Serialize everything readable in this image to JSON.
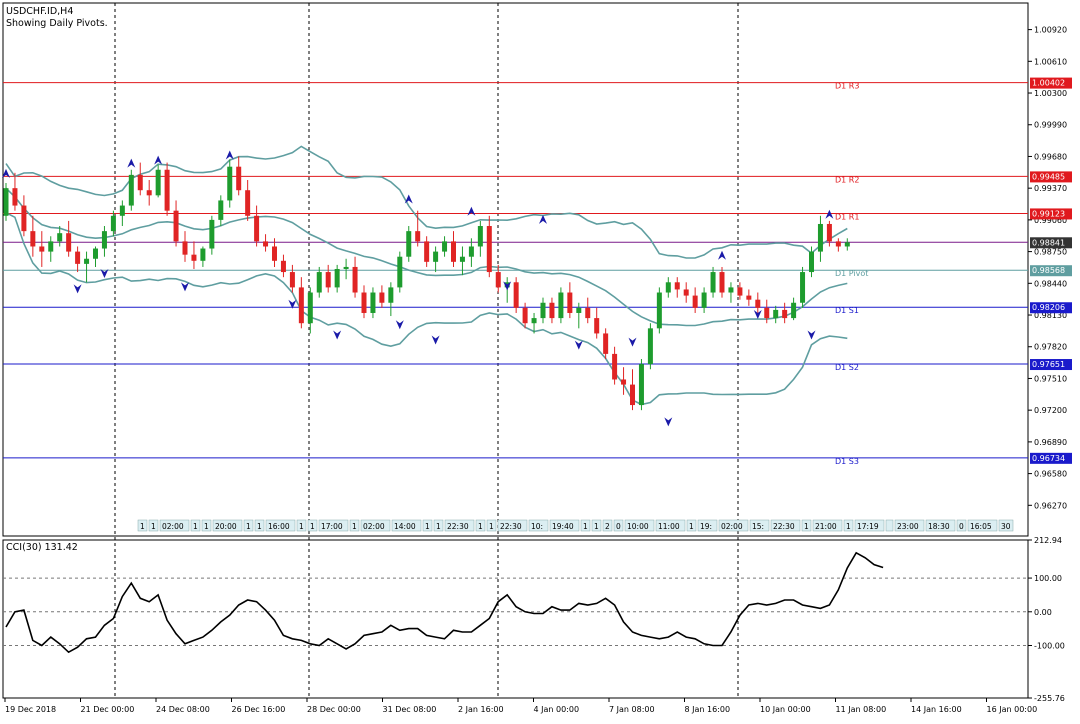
{
  "header": {
    "symbol": "USDCHF.ID,H4",
    "subtitle": "Showing Daily Pivots."
  },
  "colors": {
    "bull": "#1e9c2e",
    "bear": "#e02424",
    "band": "#5f9ea0",
    "resistance": "#e0191e",
    "support": "#1a1acb",
    "pivot": "#5f9ea0",
    "pp_box": "#5f9ea0",
    "up_arrow": "#1a1aa8",
    "down_arrow": "#1a1aa8",
    "cci_line": "#000000",
    "grid": "#000000"
  },
  "chart_data": [
    {
      "type": "candlestick",
      "title": "USDCHF.ID,H4",
      "ylim": [
        0.9597,
        1.0118
      ],
      "y_ticks": [
        "1.00920",
        "1.00610",
        "1.00300",
        "0.99990",
        "0.99680",
        "0.99370",
        "0.99060",
        "0.98750",
        "0.98440",
        "0.98130",
        "0.97820",
        "0.97510",
        "0.97200",
        "0.96890",
        "0.96580",
        "0.96270"
      ],
      "x_labels": [
        "19 Dec 2018",
        "21 Dec 00:00",
        "24 Dec 08:00",
        "26 Dec 16:00",
        "28 Dec 00:00",
        "31 Dec 08:00",
        "2 Jan 16:00",
        "4 Jan 00:00",
        "7 Jan 08:00",
        "8 Jan 16:00",
        "10 Jan 00:00",
        "11 Jan 08:00",
        "14 Jan 16:00",
        "16 Jan 00:00"
      ],
      "pivots": [
        {
          "name": "D1 R3",
          "value": 1.00402,
          "kind": "resistance"
        },
        {
          "name": "D1 R2",
          "value": 0.99485,
          "kind": "resistance"
        },
        {
          "name": "D1 R1",
          "value": 0.99123,
          "kind": "resistance"
        },
        {
          "name": "D1 Pivot",
          "value": 0.98568,
          "kind": "pivot"
        },
        {
          "name": "D1 S1",
          "value": 0.98206,
          "kind": "support"
        },
        {
          "name": "D1 S2",
          "value": 0.97651,
          "kind": "support"
        },
        {
          "name": "D1 S3",
          "value": 0.96734,
          "kind": "support"
        }
      ],
      "current_price": "0.98841",
      "candles": [
        [
          0.991,
          0.9942,
          0.9905,
          0.9937
        ],
        [
          0.9937,
          0.9952,
          0.9915,
          0.992
        ],
        [
          0.992,
          0.993,
          0.989,
          0.9895
        ],
        [
          0.9895,
          0.991,
          0.987,
          0.988
        ],
        [
          0.988,
          0.9895,
          0.986,
          0.9875
        ],
        [
          0.9875,
          0.989,
          0.9865,
          0.9885
        ],
        [
          0.9885,
          0.99,
          0.988,
          0.9893
        ],
        [
          0.9893,
          0.9905,
          0.987,
          0.9875
        ],
        [
          0.9875,
          0.988,
          0.9855,
          0.9863
        ],
        [
          0.9863,
          0.9875,
          0.9845,
          0.9868
        ],
        [
          0.9868,
          0.988,
          0.986,
          0.9878
        ],
        [
          0.9878,
          0.99,
          0.987,
          0.9895
        ],
        [
          0.9895,
          0.9915,
          0.989,
          0.991
        ],
        [
          0.991,
          0.9925,
          0.99,
          0.992
        ],
        [
          0.992,
          0.9955,
          0.9915,
          0.995
        ],
        [
          0.995,
          0.9962,
          0.993,
          0.9935
        ],
        [
          0.9935,
          0.9945,
          0.992,
          0.993
        ],
        [
          0.993,
          0.996,
          0.9928,
          0.9955
        ],
        [
          0.9955,
          0.9962,
          0.991,
          0.9915
        ],
        [
          0.9915,
          0.9925,
          0.988,
          0.9885
        ],
        [
          0.9885,
          0.9895,
          0.9865,
          0.9872
        ],
        [
          0.9872,
          0.9885,
          0.9858,
          0.9866
        ],
        [
          0.9866,
          0.988,
          0.986,
          0.9878
        ],
        [
          0.9878,
          0.991,
          0.9872,
          0.9906
        ],
        [
          0.9906,
          0.993,
          0.99,
          0.9925
        ],
        [
          0.9925,
          0.9965,
          0.9918,
          0.9958
        ],
        [
          0.9958,
          0.9968,
          0.993,
          0.9935
        ],
        [
          0.9935,
          0.9945,
          0.9905,
          0.991
        ],
        [
          0.991,
          0.992,
          0.988,
          0.9885
        ],
        [
          0.9885,
          0.9892,
          0.9875,
          0.988
        ],
        [
          0.988,
          0.9888,
          0.986,
          0.9866
        ],
        [
          0.9866,
          0.9872,
          0.985,
          0.9855
        ],
        [
          0.9855,
          0.9862,
          0.9835,
          0.984
        ],
        [
          0.984,
          0.985,
          0.98,
          0.9805
        ],
        [
          0.9805,
          0.984,
          0.9795,
          0.9835
        ],
        [
          0.9835,
          0.986,
          0.983,
          0.9855
        ],
        [
          0.9855,
          0.9862,
          0.9835,
          0.984
        ],
        [
          0.984,
          0.9862,
          0.9835,
          0.9858
        ],
        [
          0.9858,
          0.9868,
          0.9848,
          0.986
        ],
        [
          0.986,
          0.987,
          0.983,
          0.9835
        ],
        [
          0.9835,
          0.9842,
          0.981,
          0.9815
        ],
        [
          0.9815,
          0.984,
          0.981,
          0.9835
        ],
        [
          0.9835,
          0.9842,
          0.982,
          0.9825
        ],
        [
          0.9825,
          0.9845,
          0.9812,
          0.984
        ],
        [
          0.984,
          0.9875,
          0.9835,
          0.987
        ],
        [
          0.987,
          0.99,
          0.9865,
          0.9895
        ],
        [
          0.9895,
          0.9915,
          0.988,
          0.9885
        ],
        [
          0.9885,
          0.989,
          0.986,
          0.9865
        ],
        [
          0.9865,
          0.988,
          0.9855,
          0.9875
        ],
        [
          0.9875,
          0.989,
          0.987,
          0.9885
        ],
        [
          0.9885,
          0.9895,
          0.986,
          0.9865
        ],
        [
          0.9865,
          0.988,
          0.9852,
          0.987
        ],
        [
          0.987,
          0.9888,
          0.986,
          0.988
        ],
        [
          0.988,
          0.9905,
          0.987,
          0.99
        ],
        [
          0.99,
          0.991,
          0.985,
          0.9855
        ],
        [
          0.9855,
          0.9862,
          0.9835,
          0.984
        ],
        [
          0.984,
          0.985,
          0.9825,
          0.9845
        ],
        [
          0.9845,
          0.985,
          0.9815,
          0.982
        ],
        [
          0.982,
          0.9825,
          0.98,
          0.9805
        ],
        [
          0.9805,
          0.9815,
          0.9795,
          0.981
        ],
        [
          0.981,
          0.983,
          0.9805,
          0.9825
        ],
        [
          0.9825,
          0.983,
          0.9805,
          0.981
        ],
        [
          0.981,
          0.984,
          0.9805,
          0.9835
        ],
        [
          0.9835,
          0.9845,
          0.981,
          0.9815
        ],
        [
          0.9815,
          0.9825,
          0.98,
          0.982
        ],
        [
          0.982,
          0.983,
          0.9805,
          0.981
        ],
        [
          0.981,
          0.982,
          0.979,
          0.9795
        ],
        [
          0.9795,
          0.98,
          0.977,
          0.9775
        ],
        [
          0.9775,
          0.9782,
          0.9745,
          0.975
        ],
        [
          0.975,
          0.9762,
          0.9735,
          0.9745
        ],
        [
          0.9745,
          0.976,
          0.972,
          0.9725
        ],
        [
          0.9725,
          0.977,
          0.972,
          0.9765
        ],
        [
          0.9765,
          0.9805,
          0.976,
          0.98
        ],
        [
          0.98,
          0.984,
          0.9795,
          0.9835
        ],
        [
          0.9835,
          0.985,
          0.983,
          0.9845
        ],
        [
          0.9845,
          0.985,
          0.983,
          0.9838
        ],
        [
          0.9838,
          0.9845,
          0.9825,
          0.9832
        ],
        [
          0.9832,
          0.984,
          0.9815,
          0.982
        ],
        [
          0.982,
          0.984,
          0.9815,
          0.9835
        ],
        [
          0.9835,
          0.986,
          0.983,
          0.9855
        ],
        [
          0.9855,
          0.986,
          0.983,
          0.9835
        ],
        [
          0.9835,
          0.9845,
          0.9825,
          0.984
        ],
        [
          0.984,
          0.9845,
          0.9828,
          0.9832
        ],
        [
          0.9832,
          0.9838,
          0.9822,
          0.9828
        ],
        [
          0.9828,
          0.9835,
          0.9815,
          0.982
        ],
        [
          0.982,
          0.9828,
          0.9805,
          0.981
        ],
        [
          0.981,
          0.9822,
          0.9805,
          0.9818
        ],
        [
          0.9818,
          0.9825,
          0.9805,
          0.981
        ],
        [
          0.981,
          0.983,
          0.9808,
          0.9825
        ],
        [
          0.9825,
          0.986,
          0.982,
          0.9855
        ],
        [
          0.9855,
          0.988,
          0.985,
          0.9875
        ],
        [
          0.9875,
          0.991,
          0.9865,
          0.9902
        ],
        [
          0.9902,
          0.9905,
          0.988,
          0.9885
        ],
        [
          0.9885,
          0.9888,
          0.9875,
          0.988
        ],
        [
          0.988,
          0.9888,
          0.9876,
          0.9884
        ]
      ],
      "signals": [
        {
          "i": 0,
          "dir": "up",
          "price": 0.995
        },
        {
          "i": 14,
          "dir": "up",
          "price": 0.996
        },
        {
          "i": 17,
          "dir": "up",
          "price": 0.9963
        },
        {
          "i": 25,
          "dir": "up",
          "price": 0.9968
        },
        {
          "i": 45,
          "dir": "up",
          "price": 0.9925
        },
        {
          "i": 52,
          "dir": "up",
          "price": 0.9913
        },
        {
          "i": 60,
          "dir": "up",
          "price": 0.9905
        },
        {
          "i": 80,
          "dir": "up",
          "price": 0.987
        },
        {
          "i": 92,
          "dir": "up",
          "price": 0.991
        },
        {
          "i": 8,
          "dir": "down",
          "price": 0.984
        },
        {
          "i": 11,
          "dir": "down",
          "price": 0.9855
        },
        {
          "i": 20,
          "dir": "down",
          "price": 0.9842
        },
        {
          "i": 32,
          "dir": "down",
          "price": 0.9825
        },
        {
          "i": 37,
          "dir": "down",
          "price": 0.9795
        },
        {
          "i": 44,
          "dir": "down",
          "price": 0.9805
        },
        {
          "i": 48,
          "dir": "down",
          "price": 0.979
        },
        {
          "i": 56,
          "dir": "down",
          "price": 0.9843
        },
        {
          "i": 64,
          "dir": "down",
          "price": 0.9785
        },
        {
          "i": 70,
          "dir": "down",
          "price": 0.9788
        },
        {
          "i": 74,
          "dir": "down",
          "price": 0.971
        },
        {
          "i": 84,
          "dir": "down",
          "price": 0.9815
        },
        {
          "i": 90,
          "dir": "down",
          "price": 0.9795
        }
      ],
      "period_tags": [
        "1",
        "1",
        "02:00",
        "1",
        "1",
        "20:00",
        "1",
        "1",
        "16:00",
        "1",
        "1",
        "17:00",
        "1",
        "02:00",
        "14:00",
        "1",
        "1",
        "22:30",
        "1",
        "1",
        "22:30",
        "10:",
        "19:40",
        "1",
        "1",
        "2",
        "0",
        "10:00",
        "11:00",
        "1",
        "19:",
        "02:00",
        "15:",
        "22:30",
        "1",
        "21:00",
        "1",
        "17:19",
        "",
        "23:00",
        "18:30",
        "0",
        "16:05",
        "30"
      ]
    },
    {
      "type": "line",
      "title": "CCI(30) 131.42",
      "ylim": [
        -255.76,
        212.94
      ],
      "y_ticks": [
        "212.94",
        "100.00",
        "0.00",
        "-100.00",
        "-255.76"
      ],
      "levels": [
        100,
        0,
        -100
      ],
      "series": [
        {
          "name": "CCI(30)",
          "values": [
            -45,
            0,
            5,
            -85,
            -100,
            -75,
            -95,
            -120,
            -105,
            -80,
            -75,
            -40,
            -20,
            45,
            85,
            40,
            30,
            50,
            -25,
            -65,
            -95,
            -85,
            -75,
            -55,
            -30,
            -10,
            20,
            35,
            30,
            5,
            -25,
            -70,
            -80,
            -85,
            -95,
            -100,
            -80,
            -95,
            -110,
            -95,
            -70,
            -65,
            -60,
            -40,
            -55,
            -50,
            -50,
            -70,
            -75,
            -80,
            -55,
            -60,
            -60,
            -40,
            -20,
            30,
            50,
            15,
            0,
            -5,
            -5,
            15,
            5,
            5,
            25,
            20,
            25,
            40,
            20,
            -30,
            -60,
            -70,
            -75,
            -80,
            -75,
            -60,
            -75,
            -80,
            -95,
            -100,
            -100,
            -60,
            -10,
            20,
            25,
            20,
            25,
            35,
            35,
            20,
            15,
            10,
            20,
            65,
            130,
            175,
            160,
            140,
            131.42
          ]
        }
      ]
    }
  ]
}
